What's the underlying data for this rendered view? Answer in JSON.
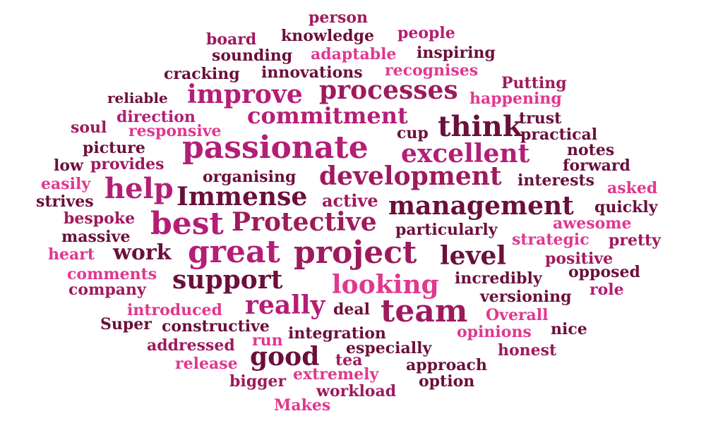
{
  "words": {
    "person": "person",
    "board": "board",
    "knowledge": "knowledge",
    "people": "people",
    "sounding": "sounding",
    "adaptable": "adaptable",
    "inspiring": "inspiring",
    "cracking": "cracking",
    "innovations": "innovations",
    "recognises": "recognises",
    "putting": "Putting",
    "reliable": "reliable",
    "improve": "improve",
    "processes": "processes",
    "happening": "happening",
    "direction": "direction",
    "commitment": "commitment",
    "trust": "trust",
    "soul": "soul",
    "responsive": "responsive",
    "cup": "cup",
    "think": "think",
    "practical": "practical",
    "picture": "picture",
    "passionate": "passionate",
    "excellent": "excellent",
    "notes": "notes",
    "low": "low",
    "provides": "provides",
    "forward": "forward",
    "easily": "easily",
    "organising": "organising",
    "development": "development",
    "interests": "interests",
    "help": "help",
    "asked": "asked",
    "strives": "strives",
    "immense": "Immense",
    "active": "active",
    "management": "management",
    "quickly": "quickly",
    "bespoke": "bespoke",
    "best": "best",
    "protective": "Protective",
    "awesome": "awesome",
    "massive": "massive",
    "particularly": "particularly",
    "strategic": "strategic",
    "pretty": "pretty",
    "heart": "heart",
    "work": "work",
    "great": "great",
    "project": "project",
    "level": "level",
    "positive": "positive",
    "comments": "comments",
    "opposed": "opposed",
    "company": "company",
    "support": "support",
    "looking": "looking",
    "incredibly": "incredibly",
    "role": "role",
    "versioning": "versioning",
    "introduced": "introduced",
    "really": "really",
    "deal": "deal",
    "team": "team",
    "overall": "Overall",
    "super": "Super",
    "constructive": "constructive",
    "integration": "integration",
    "opinions": "opinions",
    "nice": "nice",
    "addressed": "addressed",
    "run": "run",
    "especially": "especially",
    "honest": "honest",
    "release": "release",
    "good": "good",
    "tea": "tea",
    "approach": "approach",
    "extremely": "extremely",
    "bigger": "bigger",
    "option": "option",
    "workload": "workload",
    "makes": "Makes"
  },
  "colors": {
    "magenta": "#9e1a5e",
    "plum": "#6b0f3c",
    "pink": "#e0388f",
    "mid": "#b41e77",
    "rose": "#c92b82",
    "background": "#ffffff"
  }
}
